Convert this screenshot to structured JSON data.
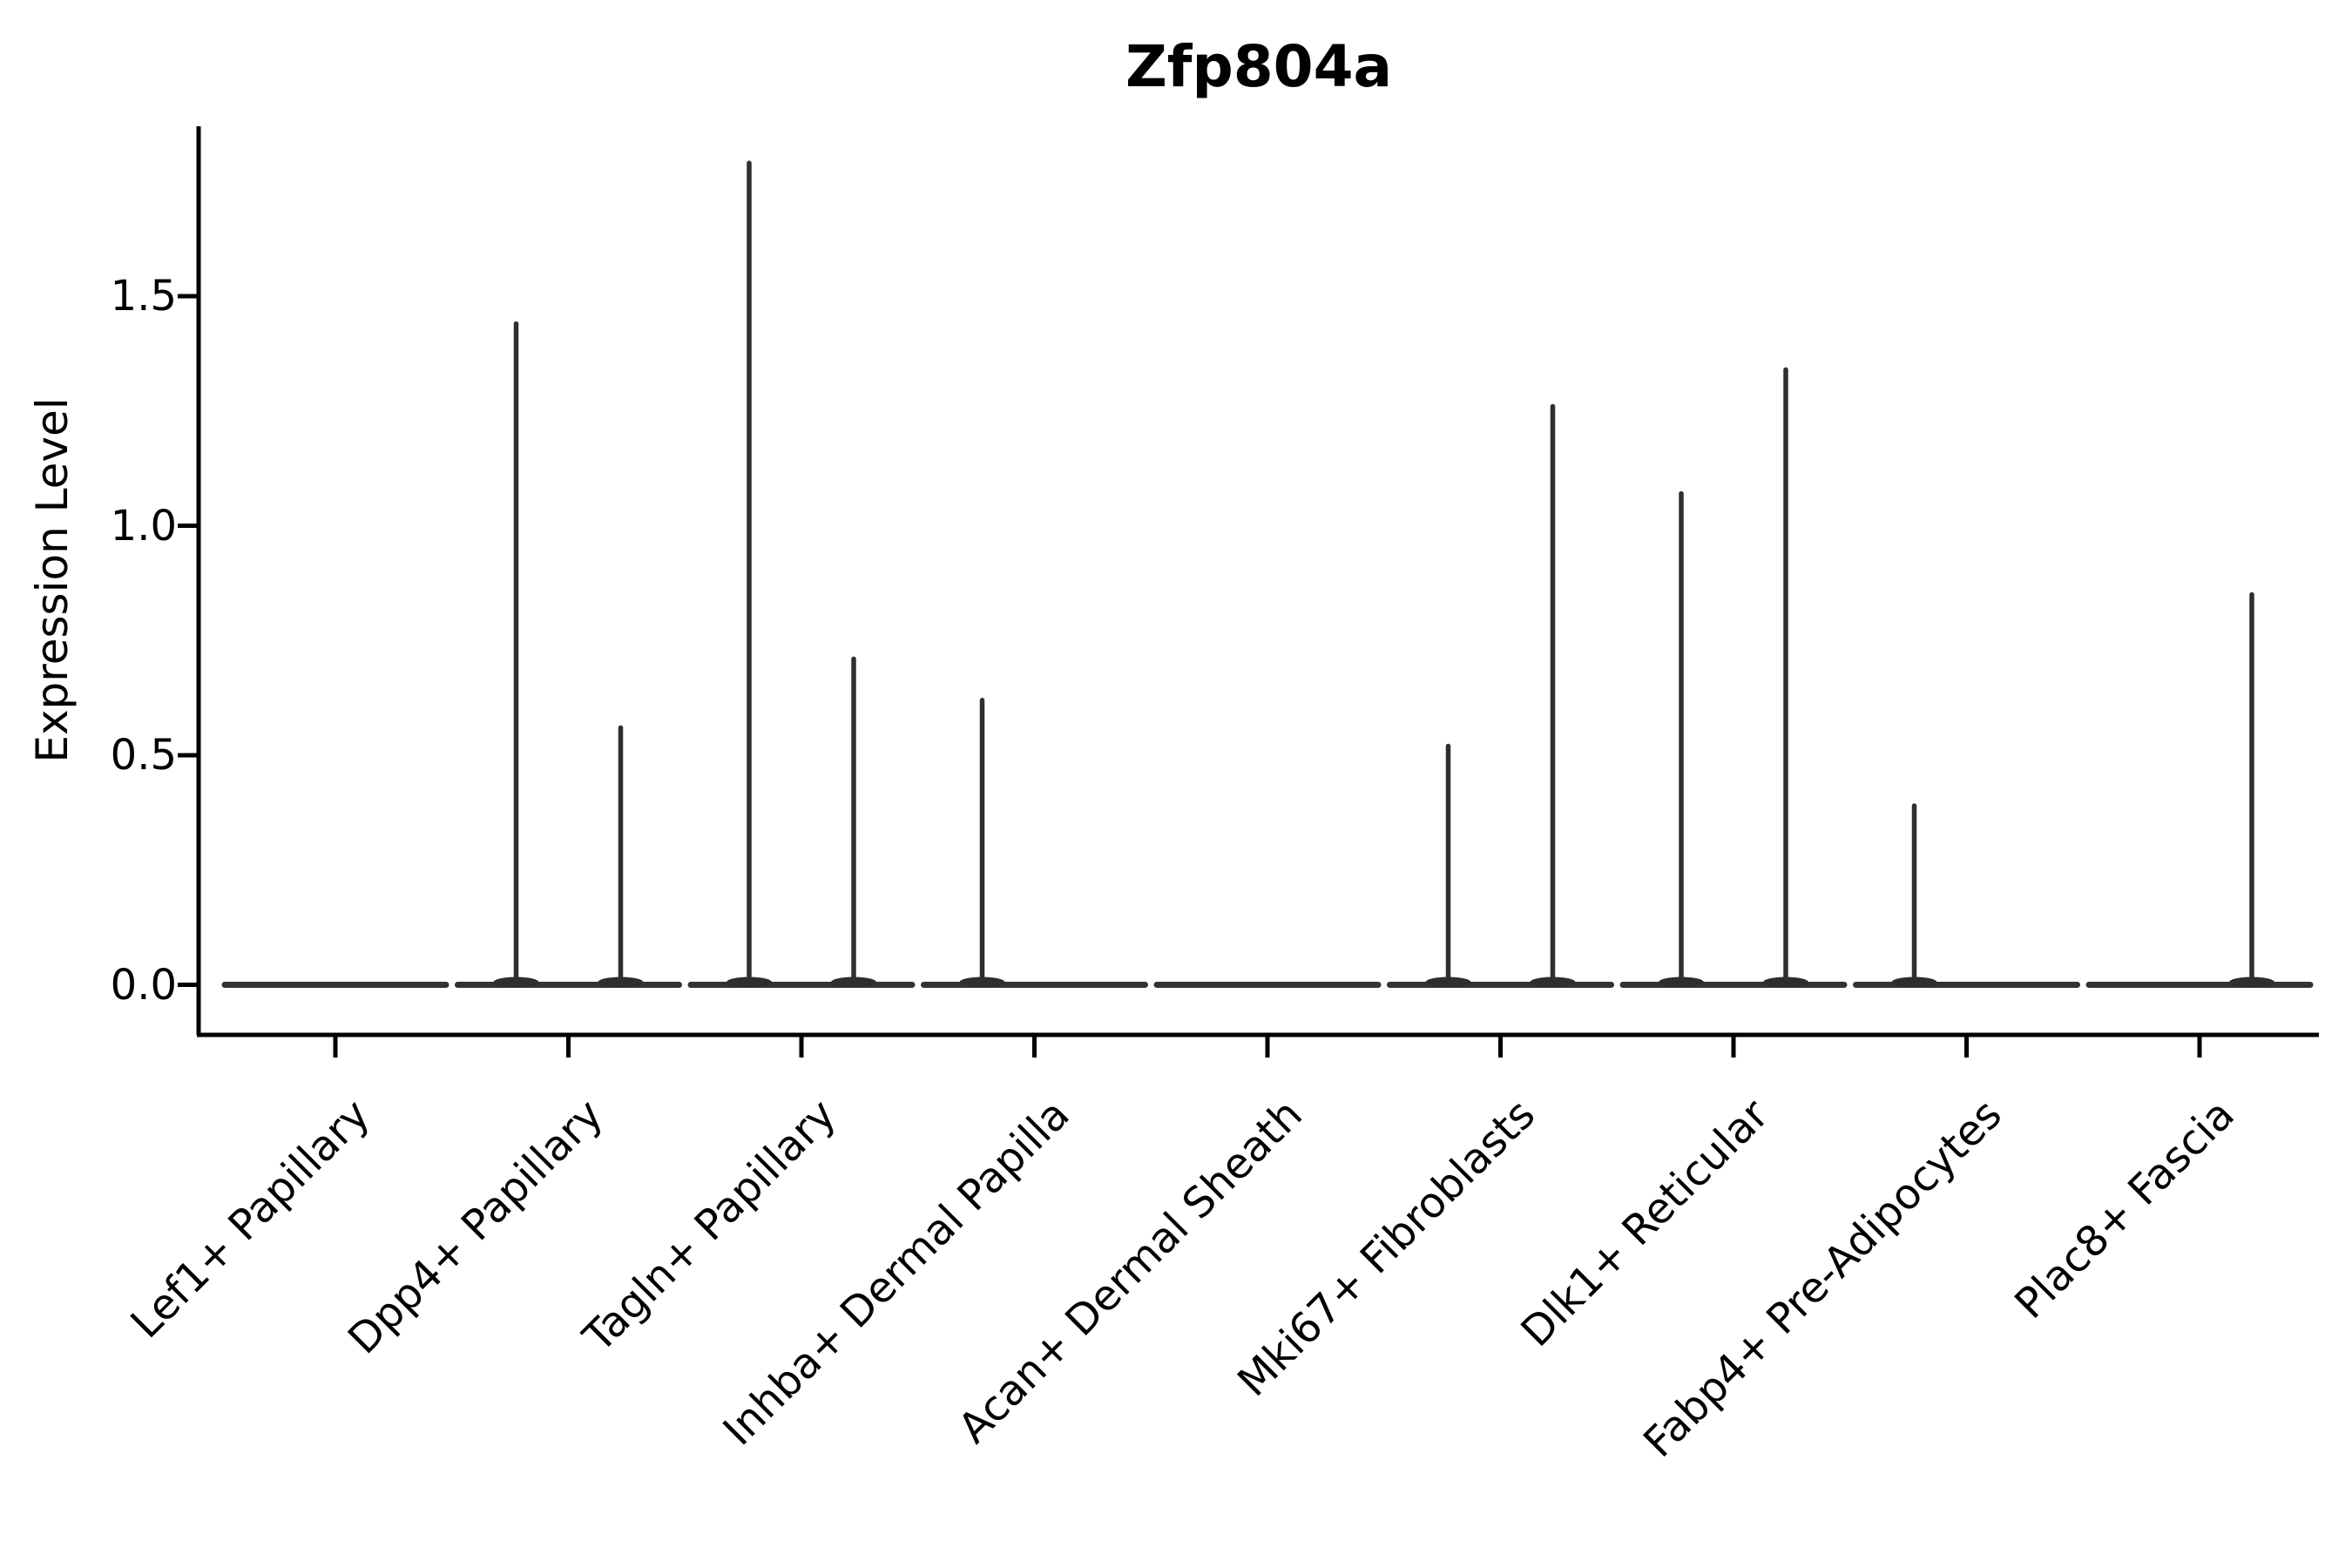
{
  "title": "Zfp804a",
  "y_axis": {
    "label": "Expression Level",
    "tick_labels": [
      "0.0",
      "0.5",
      "1.0",
      "1.5"
    ]
  },
  "chart_data": {
    "type": "violin",
    "title": "Zfp804a",
    "xlabel": "",
    "ylabel": "Expression Level",
    "categories": [
      "Lef1+ Papillary",
      "Dpp4+ Papillary",
      "Tagln+ Papillary",
      "Inhba+ Dermal Papilla",
      "Acan+ Dermal Sheath",
      "Mki67+ Fibroblasts",
      "Dlk1+ Reticular",
      "Fabp4+ Pre-Adipocytes",
      "Plac8+ Fascia"
    ],
    "series": [
      {
        "name": "left-violin",
        "max_values": [
          0,
          1.44,
          1.79,
          0.62,
          0,
          0.52,
          1.07,
          0.39,
          0
        ]
      },
      {
        "name": "right-violin",
        "max_values": [
          0,
          0.56,
          0.71,
          0,
          0,
          1.26,
          1.34,
          0,
          0.85
        ]
      }
    ],
    "violin_bulk_at_zero": true,
    "yticks": [
      0.0,
      0.5,
      1.0,
      1.5
    ],
    "ytick_labels": [
      "0.0",
      "0.5",
      "1.0",
      "1.5"
    ],
    "ylim": [
      -0.11,
      1.87
    ],
    "grid": false,
    "legend": "none",
    "colors": {
      "violin": "#2e2e2e",
      "violin_base": "#333333",
      "axis": "#000000",
      "text": "#000000",
      "background": "#ffffff"
    }
  }
}
